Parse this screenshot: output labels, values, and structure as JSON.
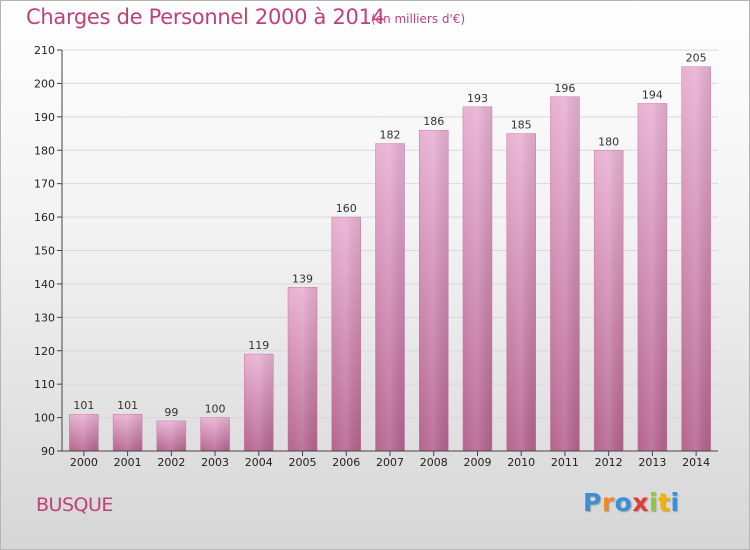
{
  "title": "Charges de Personnel 2000 à 2014",
  "subtitle": "(en milliers d'€)",
  "commune": "BUSQUE",
  "logo": {
    "letters": [
      "P",
      "r",
      "o",
      "x",
      "i",
      "t",
      "i"
    ],
    "colors": [
      "#3a8fd6",
      "#f08a24",
      "#3a8fd6",
      "#e23a3a",
      "#8dc63f",
      "#f0b400",
      "#3a8fd6"
    ]
  },
  "colors": {
    "title": "#c0417a",
    "bar_top": "#e9b1d3",
    "bar_bottom": "#b5648e",
    "grid": "#d9d9d9"
  },
  "chart_data": {
    "type": "bar",
    "categories": [
      "2000",
      "2001",
      "2002",
      "2003",
      "2004",
      "2005",
      "2006",
      "2007",
      "2008",
      "2009",
      "2010",
      "2011",
      "2012",
      "2013",
      "2014"
    ],
    "values": [
      101,
      101,
      99,
      100,
      119,
      139,
      160,
      182,
      186,
      193,
      185,
      196,
      180,
      194,
      205
    ],
    "ylim": [
      90,
      210
    ],
    "yticks": [
      90,
      100,
      110,
      120,
      130,
      140,
      150,
      160,
      170,
      180,
      190,
      200,
      210
    ],
    "grid": true,
    "data_labels": true
  }
}
